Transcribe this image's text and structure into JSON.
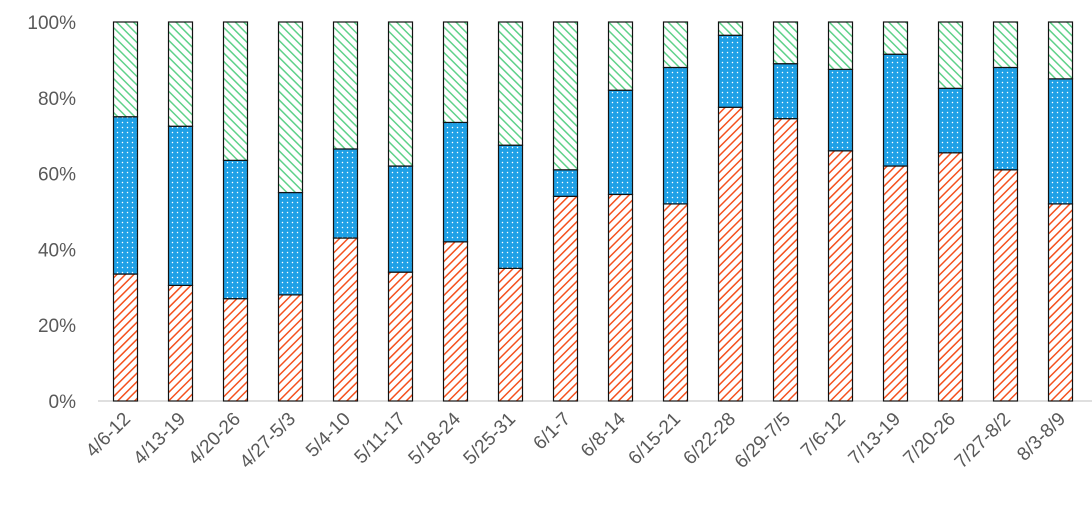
{
  "chart_data": {
    "type": "bar",
    "stacked": "percent",
    "categories": [
      "4/6-12",
      "4/13-19",
      "4/20-26",
      "4/27-5/3",
      "5/4-10",
      "5/11-17",
      "5/18-24",
      "5/25-31",
      "6/1-7",
      "6/8-14",
      "6/15-21",
      "6/22-28",
      "6/29-7/5",
      "7/6-12",
      "7/13-19",
      "7/20-26",
      "7/27-8/2",
      "8/3-8/9"
    ],
    "series": [
      {
        "values": [
          33.5,
          30.5,
          27,
          28,
          43,
          34,
          42,
          35,
          54,
          54.5,
          52,
          77.5,
          74.5,
          66,
          62,
          65.5,
          61,
          52
        ],
        "color": "#F4511E",
        "pattern": "diagonal-hatch"
      },
      {
        "values": [
          41.5,
          42,
          36.5,
          27,
          23.5,
          28,
          31.5,
          32.5,
          7,
          27.5,
          36,
          19,
          14.5,
          21.5,
          29.5,
          17,
          27,
          33
        ],
        "color": "#1FA0E6",
        "pattern": "dotted"
      },
      {
        "values": [
          25,
          27.5,
          36.5,
          45,
          33.5,
          38,
          26.5,
          32.5,
          39,
          18,
          12,
          3.5,
          11,
          12.5,
          8.5,
          17.5,
          12,
          15
        ],
        "color": "#5FD18A",
        "pattern": "diagonal-hatch"
      }
    ],
    "title": "",
    "xlabel": "",
    "ylabel": "",
    "ylim": [
      0,
      100
    ],
    "ytick_labels": [
      "0%",
      "20%",
      "40%",
      "60%",
      "80%",
      "100%"
    ],
    "grid": false,
    "legend": "none"
  }
}
